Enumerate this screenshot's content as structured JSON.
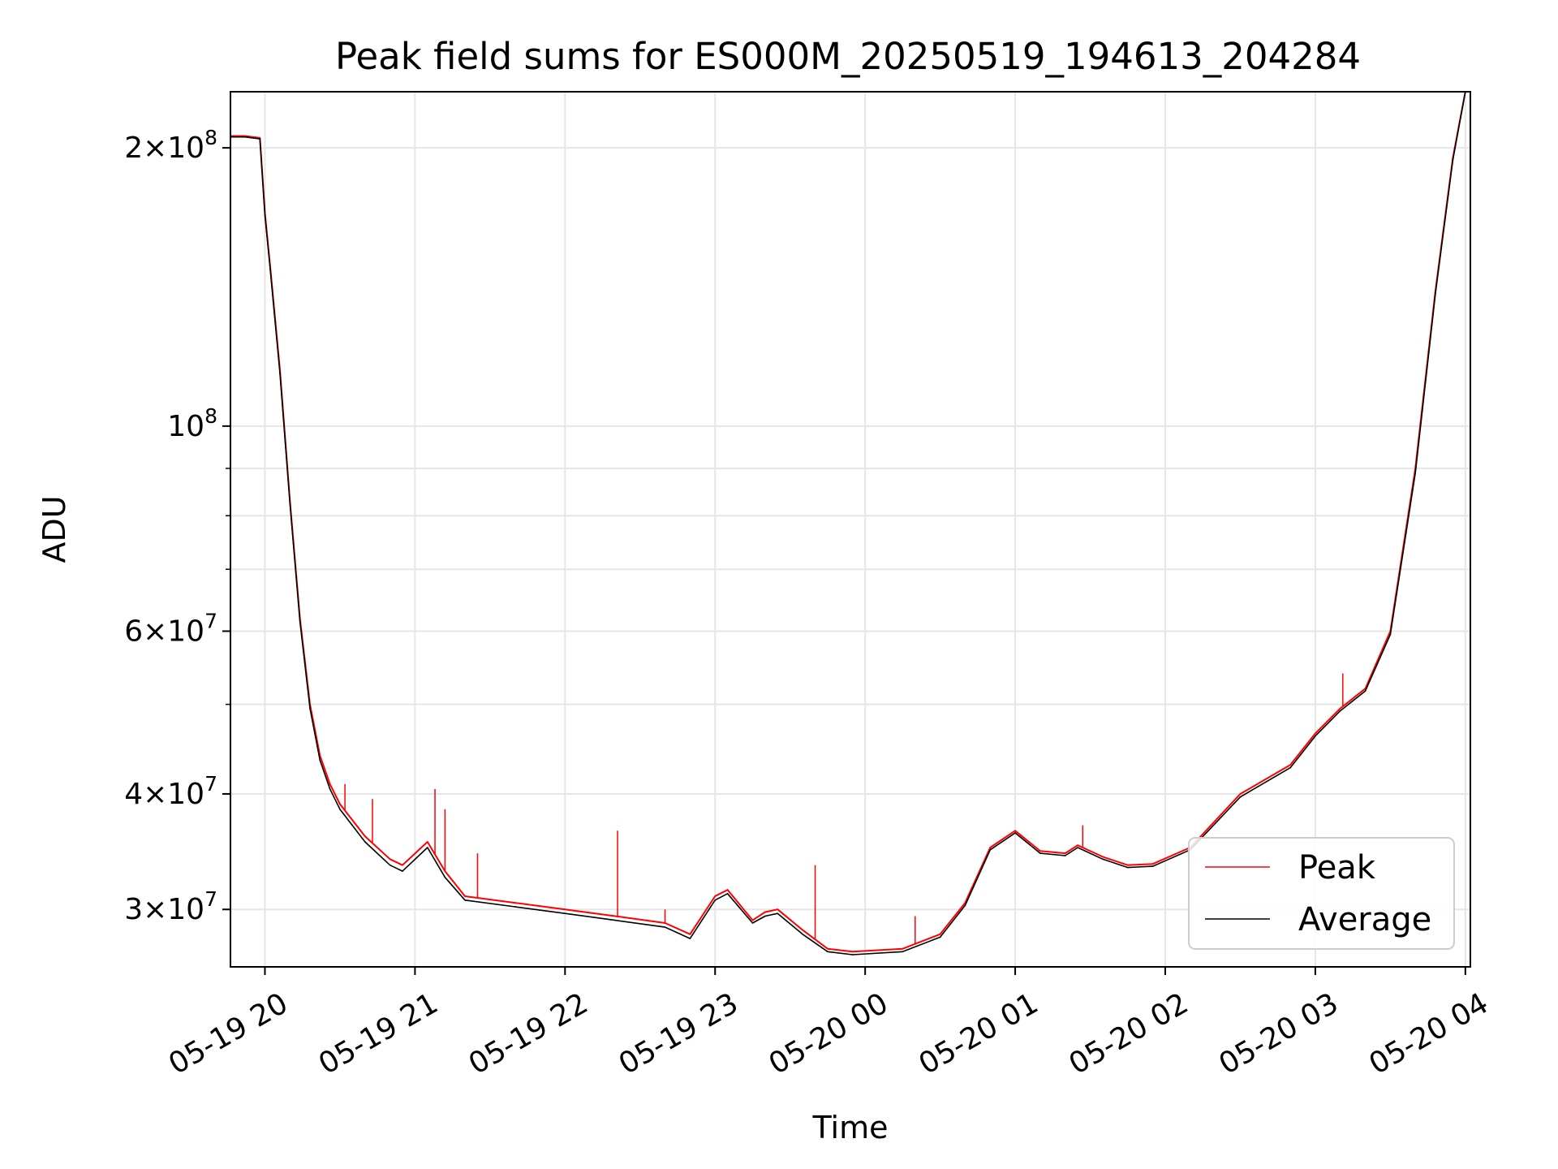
{
  "chart_data": {
    "type": "line",
    "title": "Peak field sums for ES000M_20250519_194613_204284",
    "xlabel": "Time",
    "ylabel": "ADU",
    "yscale": "log",
    "ylim": [
      26000000,
      230000000
    ],
    "xlim": [
      "2025-05-19T19:46:13",
      "2025-05-20T04:02:00"
    ],
    "grid": true,
    "legend_position": "lower right",
    "x_tick_labels": [
      "05-19 20",
      "05-19 21",
      "05-19 22",
      "05-19 23",
      "05-20 00",
      "05-20 01",
      "05-20 02",
      "05-20 03",
      "05-20 04"
    ],
    "x_ticks": [
      "2025-05-19T20:00:00",
      "2025-05-19T21:00:00",
      "2025-05-19T22:00:00",
      "2025-05-19T23:00:00",
      "2025-05-20T00:00:00",
      "2025-05-20T01:00:00",
      "2025-05-20T02:00:00",
      "2025-05-20T03:00:00",
      "2025-05-20T04:00:00"
    ],
    "y_major_ticks": [
      {
        "value": 200000000,
        "mantissa": "2",
        "exponent": "8"
      },
      {
        "value": 100000000,
        "mantissa": "",
        "exponent": "8"
      },
      {
        "value": 60000000,
        "mantissa": "6",
        "exponent": "7"
      },
      {
        "value": 40000000,
        "mantissa": "4",
        "exponent": "7"
      },
      {
        "value": 30000000,
        "mantissa": "3",
        "exponent": "7"
      }
    ],
    "y_minor_ticks": [
      90000000,
      80000000,
      70000000,
      50000000
    ],
    "x": [
      "2025-05-19T19:46:13",
      "2025-05-19T19:52:00",
      "2025-05-19T19:58:00",
      "2025-05-19T20:00:00",
      "2025-05-19T20:02:00",
      "2025-05-19T20:06:00",
      "2025-05-19T20:10:00",
      "2025-05-19T20:14:00",
      "2025-05-19T20:18:00",
      "2025-05-19T20:22:00",
      "2025-05-19T20:26:00",
      "2025-05-19T20:30:00",
      "2025-05-19T20:40:00",
      "2025-05-19T20:50:00",
      "2025-05-19T20:55:00",
      "2025-05-19T21:05:00",
      "2025-05-19T21:12:00",
      "2025-05-19T21:20:00",
      "2025-05-19T21:40:00",
      "2025-05-19T22:00:00",
      "2025-05-19T22:20:00",
      "2025-05-19T22:40:00",
      "2025-05-19T22:50:00",
      "2025-05-19T23:00:00",
      "2025-05-19T23:05:00",
      "2025-05-19T23:15:00",
      "2025-05-19T23:20:00",
      "2025-05-19T23:25:00",
      "2025-05-19T23:35:00",
      "2025-05-19T23:45:00",
      "2025-05-19T23:55:00",
      "2025-05-20T00:15:00",
      "2025-05-20T00:30:00",
      "2025-05-20T00:40:00",
      "2025-05-20T00:50:00",
      "2025-05-20T01:00:00",
      "2025-05-20T01:10:00",
      "2025-05-20T01:20:00",
      "2025-05-20T01:25:00",
      "2025-05-20T01:35:00",
      "2025-05-20T01:45:00",
      "2025-05-20T01:55:00",
      "2025-05-20T02:10:00",
      "2025-05-20T02:30:00",
      "2025-05-20T02:50:00",
      "2025-05-20T03:00:00",
      "2025-05-20T03:10:00",
      "2025-05-20T03:20:00",
      "2025-05-20T03:30:00",
      "2025-05-20T03:40:00",
      "2025-05-20T03:48:00",
      "2025-05-20T03:55:00",
      "2025-05-20T04:00:00",
      "2025-05-20T04:02:00"
    ],
    "series": [
      {
        "name": "Peak",
        "color": "#ff0000",
        "values": [
          206000000,
          206000000,
          205000000,
          170000000,
          150000000,
          115000000,
          83000000,
          62000000,
          50000000,
          44000000,
          41000000,
          39000000,
          36000000,
          34000000,
          33500000,
          35500000,
          33000000,
          31000000,
          30500000,
          30000000,
          29500000,
          29000000,
          28200000,
          31000000,
          31500000,
          29200000,
          29800000,
          30000000,
          28500000,
          27200000,
          27000000,
          27200000,
          28200000,
          30500000,
          35000000,
          36500000,
          34700000,
          34500000,
          35200000,
          34200000,
          33500000,
          33600000,
          35000000,
          40000000,
          43000000,
          46500000,
          49500000,
          52000000,
          60000000,
          90000000,
          140000000,
          195000000,
          230000000,
          230000000
        ]
      },
      {
        "name": "Average",
        "color": "#000000",
        "values": [
          205500000,
          205500000,
          204500000,
          169000000,
          149000000,
          114000000,
          82500000,
          61500000,
          49500000,
          43500000,
          40500000,
          38500000,
          35500000,
          33500000,
          33000000,
          35000000,
          32500000,
          30700000,
          30200000,
          29700000,
          29200000,
          28700000,
          27900000,
          30700000,
          31200000,
          29000000,
          29500000,
          29700000,
          28200000,
          27000000,
          26800000,
          27000000,
          28000000,
          30300000,
          34800000,
          36300000,
          34500000,
          34300000,
          35000000,
          34000000,
          33300000,
          33400000,
          34800000,
          39700000,
          42700000,
          46200000,
          49200000,
          51700000,
          59500000,
          89000000,
          139000000,
          194000000,
          230000000,
          230000000
        ]
      }
    ],
    "spikes": [
      {
        "series": "Peak",
        "x": "2025-05-19T20:32:00",
        "y": 41000000
      },
      {
        "series": "Peak",
        "x": "2025-05-19T20:43:00",
        "y": 39500000
      },
      {
        "series": "Peak",
        "x": "2025-05-19T21:08:00",
        "y": 40500000
      },
      {
        "series": "Peak",
        "x": "2025-05-19T21:12:00",
        "y": 38500000
      },
      {
        "series": "Peak",
        "x": "2025-05-19T21:25:00",
        "y": 34500000
      },
      {
        "series": "Peak",
        "x": "2025-05-19T22:21:00",
        "y": 36500000
      },
      {
        "series": "Peak",
        "x": "2025-05-19T22:40:00",
        "y": 30000000
      },
      {
        "series": "Peak",
        "x": "2025-05-19T23:40:00",
        "y": 33500000
      },
      {
        "series": "Peak",
        "x": "2025-05-20T00:20:00",
        "y": 29500000
      },
      {
        "series": "Peak",
        "x": "2025-05-20T01:27:00",
        "y": 37000000
      },
      {
        "series": "Peak",
        "x": "2025-05-20T03:11:00",
        "y": 54000000
      }
    ]
  }
}
